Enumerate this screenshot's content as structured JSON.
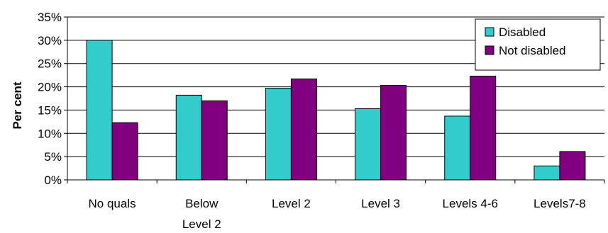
{
  "chart_data": {
    "type": "bar",
    "ylabel": "Per cent",
    "xlabel": "",
    "ylim": [
      0,
      35
    ],
    "yticks": [
      "0%",
      "5%",
      "10%",
      "15%",
      "20%",
      "25%",
      "30%",
      "35%"
    ],
    "grid": true,
    "legend_position": "top-right",
    "categories": [
      [
        "No quals"
      ],
      [
        "Below",
        "Level 2"
      ],
      [
        "Level 2"
      ],
      [
        "Level 3"
      ],
      [
        "Levels 4-6"
      ],
      [
        "Levels7-8"
      ]
    ],
    "series": [
      {
        "name": "Disabled",
        "color": "#33CCCC",
        "values": [
          30,
          18.2,
          19.7,
          15.3,
          13.7,
          3
        ]
      },
      {
        "name": "Not disabled",
        "color": "#800080",
        "values": [
          12.3,
          17,
          21.7,
          20.3,
          22.3,
          6.1
        ]
      }
    ]
  }
}
